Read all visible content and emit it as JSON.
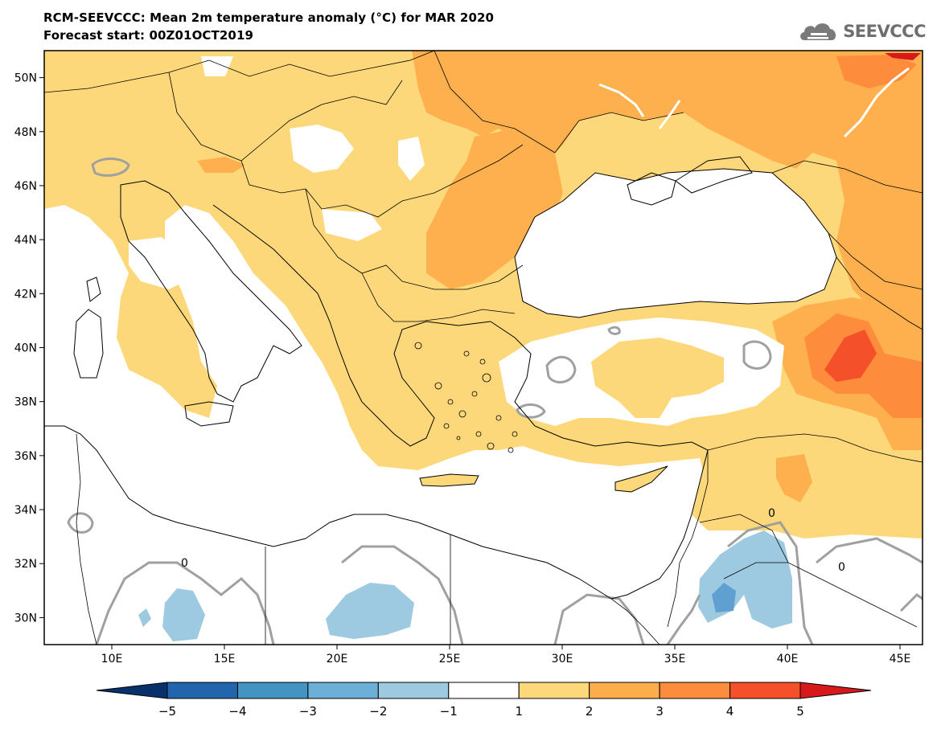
{
  "header": {
    "title": "RCM-SEEVCCC: Mean 2m temperature anomaly (°C) for MAR 2020",
    "subtitle": "Forecast start: 00Z01OCT2019"
  },
  "logo": {
    "text": "SEEVCCC",
    "icon": "cloud-icon"
  },
  "map": {
    "lon_range": [
      7,
      46
    ],
    "lat_range": [
      29,
      51
    ],
    "lat_ticks": [
      {
        "value": 50,
        "label": "50N"
      },
      {
        "value": 48,
        "label": "48N"
      },
      {
        "value": 46,
        "label": "46N"
      },
      {
        "value": 44,
        "label": "44N"
      },
      {
        "value": 42,
        "label": "42N"
      },
      {
        "value": 40,
        "label": "40N"
      },
      {
        "value": 38,
        "label": "38N"
      },
      {
        "value": 36,
        "label": "36N"
      },
      {
        "value": 34,
        "label": "34N"
      },
      {
        "value": 32,
        "label": "32N"
      },
      {
        "value": 30,
        "label": "30N"
      }
    ],
    "lon_ticks": [
      {
        "value": 10,
        "label": "10E"
      },
      {
        "value": 15,
        "label": "15E"
      },
      {
        "value": 20,
        "label": "20E"
      },
      {
        "value": 25,
        "label": "25E"
      },
      {
        "value": 30,
        "label": "30E"
      },
      {
        "value": 35,
        "label": "35E"
      },
      {
        "value": 40,
        "label": "40E"
      },
      {
        "value": 45,
        "label": "45E"
      }
    ],
    "contour_label": "0"
  },
  "colorbar": {
    "levels": [
      "−5",
      "−4",
      "−3",
      "−2",
      "−1",
      "1",
      "2",
      "3",
      "4",
      "5"
    ],
    "colors": [
      "#08306b",
      "#2166ac",
      "#4393c3",
      "#6baed6",
      "#9ecae1",
      "#ffffff",
      "#fdd87a",
      "#fdae4b",
      "#fc8d3c",
      "#f4512a",
      "#d7191c"
    ]
  },
  "colors": {
    "anomaly_1_2": "#fdd87a",
    "anomaly_2_3": "#fdb04d",
    "anomaly_3_4": "#fd8d3c",
    "anomaly_4_5": "#f4512a",
    "anomaly_gt5": "#d7191c",
    "anomaly_m1_m2": "#9ecae1",
    "anomaly_m2_m3": "#5fa0d0",
    "contour_zero": "#a0a0a0"
  }
}
